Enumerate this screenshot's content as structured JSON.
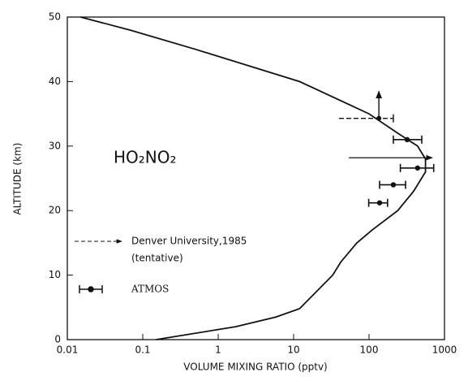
{
  "chart_data": {
    "type": "profile",
    "annotation": "HO₂NO₂",
    "xlabel": "VOLUME MIXING RATIO (pptv)",
    "ylabel": "ALTITUDE (km)",
    "xscale": "log",
    "xlim": [
      0.01,
      1000
    ],
    "ylim": [
      0,
      50
    ],
    "xticks": [
      0.01,
      0.1,
      1,
      10,
      100,
      1000
    ],
    "yticks": [
      0,
      10,
      20,
      30,
      40,
      50
    ],
    "model": {
      "x": [
        0.15,
        1.7,
        5.8,
        12,
        33,
        42,
        69,
        110,
        240,
        390,
        560,
        560,
        440,
        240,
        100,
        12,
        0.5,
        0.067,
        0.015
      ],
      "y": [
        0,
        2,
        3.5,
        4.8,
        10,
        12,
        15,
        17,
        20,
        23,
        26,
        28,
        30,
        32,
        35,
        40,
        45,
        48,
        50
      ]
    },
    "series": [
      {
        "name": "Denver University,1985",
        "note": "(tentative)",
        "x": [
          135,
          null
        ],
        "y": [
          34.3,
          28.2
        ],
        "x_low": [
          40,
          54
        ],
        "x_high": [
          210,
          690
        ],
        "arrow_to": [
          38.5,
          null
        ]
      },
      {
        "name": "ATMOS",
        "x": [
          138,
          210,
          440,
          320
        ],
        "y": [
          21.2,
          24,
          26.6,
          31
        ],
        "x_low": [
          99,
          138,
          260,
          210
        ],
        "x_high": [
          176,
          305,
          720,
          500
        ]
      }
    ]
  }
}
